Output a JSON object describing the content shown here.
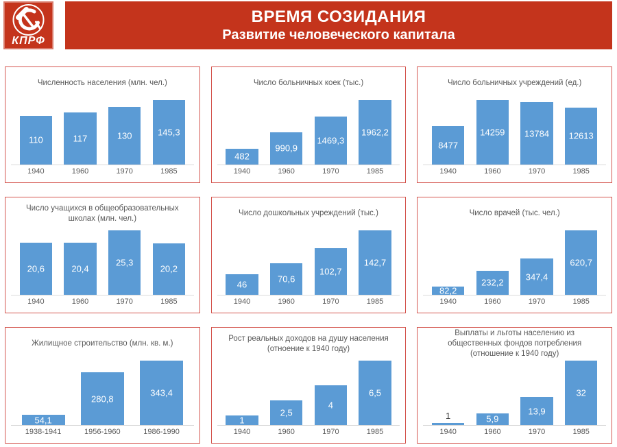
{
  "header": {
    "title": "ВРЕМЯ СОЗИДАНИЯ",
    "subtitle": "Развитие человеческого капитала",
    "logo": {
      "text": "КПРФ",
      "icon": "hammer-and-sickle-icon"
    }
  },
  "colors": {
    "header_bg": "#c4341c",
    "header_text": "#ffffff",
    "panel_border": "#d4534c",
    "bar": "#5b9bd5",
    "label_inside": "#ffffff",
    "label_outside": "#3f3f3f",
    "axis_text": "#595959",
    "baseline": "#d9d9d9"
  },
  "chart_data": [
    {
      "type": "bar",
      "title": "Численность населения (млн. чел.)",
      "categories": [
        "1940",
        "1960",
        "1970",
        "1985"
      ],
      "values": [
        110,
        117,
        130,
        145.3
      ],
      "labels": [
        "110",
        "117",
        "130",
        "145,3"
      ],
      "ylim": [
        0,
        145.3
      ],
      "grid": false,
      "legend": "none"
    },
    {
      "type": "bar",
      "title": "Число больничных коек (тыс.)",
      "categories": [
        "1940",
        "1960",
        "1970",
        "1985"
      ],
      "values": [
        482,
        990.9,
        1469.3,
        1962.2
      ],
      "labels": [
        "482",
        "990,9",
        "1469,3",
        "1962,2"
      ],
      "ylim": [
        0,
        1962.2
      ],
      "grid": false,
      "legend": "none"
    },
    {
      "type": "bar",
      "title": "Число больничных учреждений (ед.)",
      "categories": [
        "1940",
        "1960",
        "1970",
        "1985"
      ],
      "values": [
        8477,
        14259,
        13784,
        12613
      ],
      "labels": [
        "8477",
        "14259",
        "13784",
        "12613"
      ],
      "ylim": [
        0,
        14259
      ],
      "grid": false,
      "legend": "none"
    },
    {
      "type": "bar",
      "title": "Число учащихся в общеобразовательных школах (млн. чел.)",
      "categories": [
        "1940",
        "1960",
        "1970",
        "1985"
      ],
      "values": [
        20.6,
        20.4,
        25.3,
        20.2
      ],
      "labels": [
        "20,6",
        "20,4",
        "25,3",
        "20,2"
      ],
      "ylim": [
        0,
        25.3
      ],
      "grid": false,
      "legend": "none"
    },
    {
      "type": "bar",
      "title": "Число дошкольных учреждений (тыс.)",
      "categories": [
        "1940",
        "1960",
        "1970",
        "1985"
      ],
      "values": [
        46,
        70.6,
        102.7,
        142.7
      ],
      "labels": [
        "46",
        "70,6",
        "102,7",
        "142,7"
      ],
      "ylim": [
        0,
        142.7
      ],
      "grid": false,
      "legend": "none"
    },
    {
      "type": "bar",
      "title": "Число врачей (тыс. чел.)",
      "categories": [
        "1940",
        "1960",
        "1970",
        "1985"
      ],
      "values": [
        82.2,
        232.2,
        347.4,
        620.7
      ],
      "labels": [
        "82,2",
        "232,2",
        "347,4",
        "620,7"
      ],
      "ylim": [
        0,
        620.7
      ],
      "grid": false,
      "legend": "none"
    },
    {
      "type": "bar",
      "title": "Жилищное строительство (млн. кв. м.)",
      "categories": [
        "1938-1941",
        "1956-1960",
        "1986-1990"
      ],
      "values": [
        54.1,
        280.8,
        343.4
      ],
      "labels": [
        "54,1",
        "280,8",
        "343,4"
      ],
      "ylim": [
        0,
        343.4
      ],
      "grid": false,
      "legend": "none"
    },
    {
      "type": "bar",
      "title": "Рост реальных доходов на душу населения (отноение к 1940 году)",
      "categories": [
        "1940",
        "1960",
        "1970",
        "1985"
      ],
      "values": [
        1,
        2.5,
        4,
        6.5
      ],
      "labels": [
        "1",
        "2,5",
        "4",
        "6,5"
      ],
      "ylim": [
        0,
        6.5
      ],
      "grid": false,
      "legend": "none"
    },
    {
      "type": "bar",
      "title": "Выплаты и льготы населению из общественных фондов потребления (отношение к 1940 году)",
      "categories": [
        "1940",
        "1960",
        "1970",
        "1985"
      ],
      "values": [
        1,
        5.9,
        13.9,
        32
      ],
      "labels": [
        "1",
        "5,9",
        "13,9",
        "32"
      ],
      "ylim": [
        0,
        32
      ],
      "grid": false,
      "legend": "none"
    }
  ]
}
